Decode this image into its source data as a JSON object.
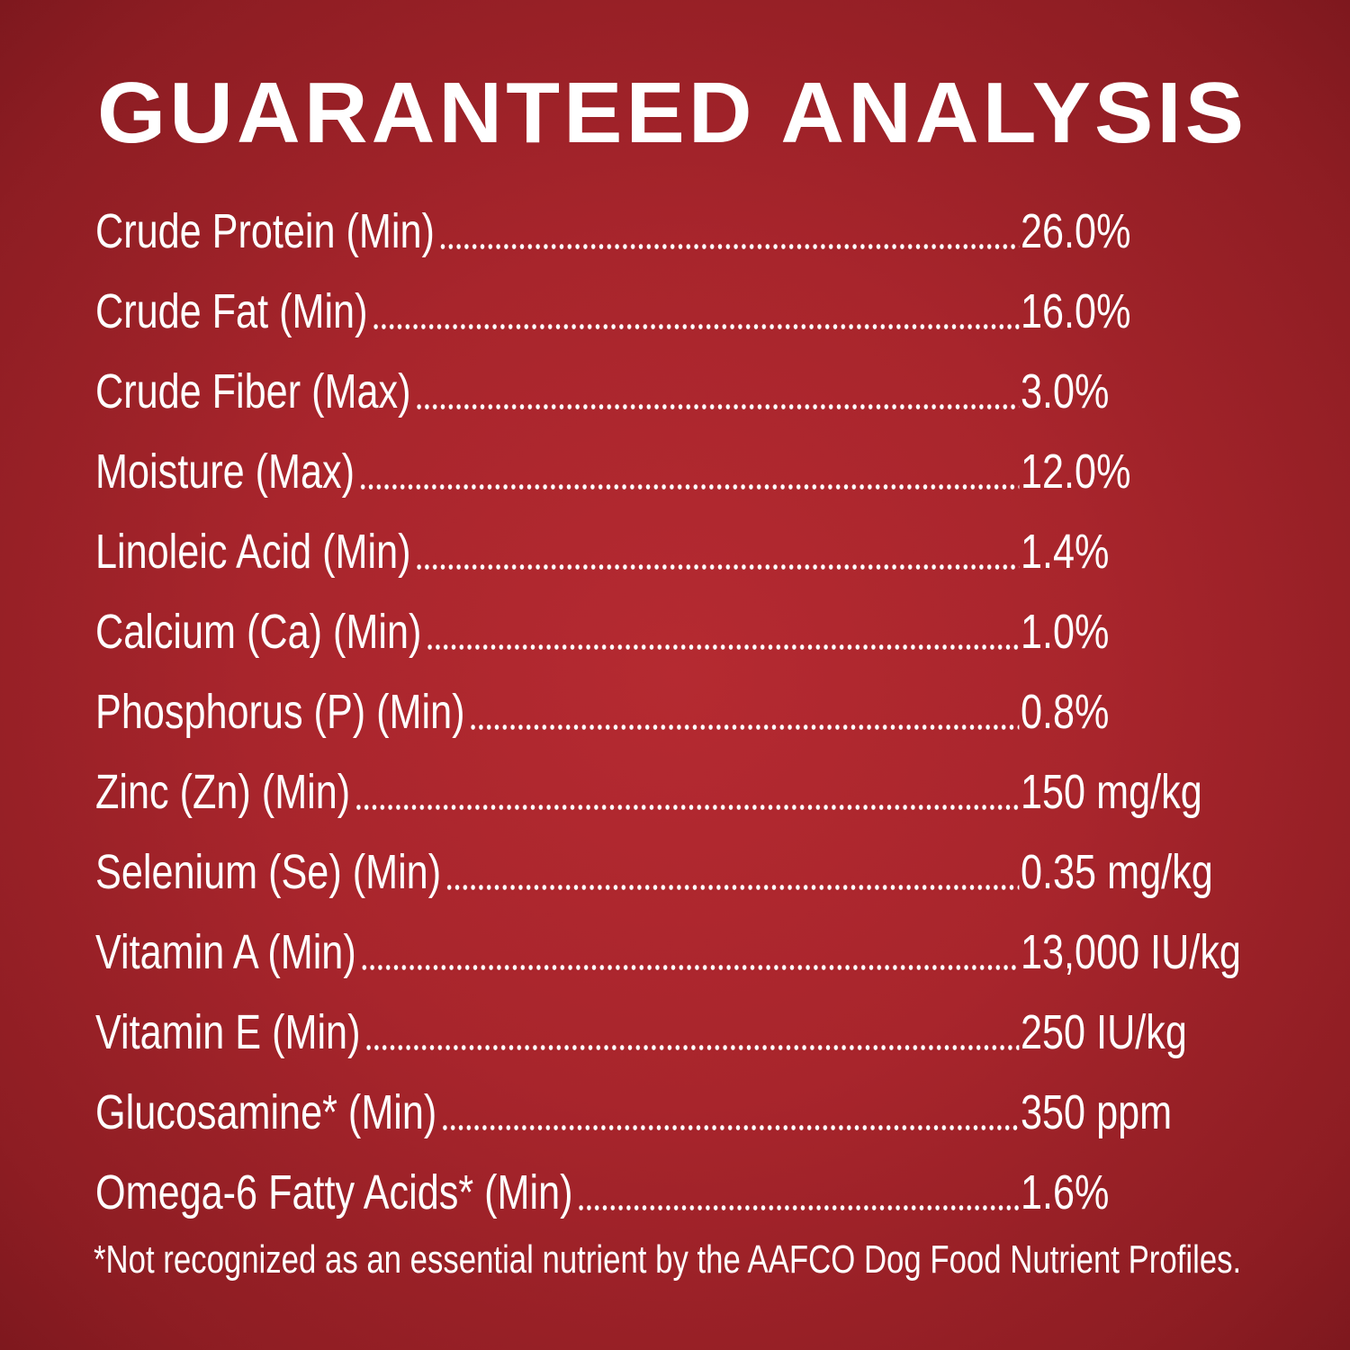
{
  "title": "GUARANTEED ANALYSIS",
  "rows": [
    {
      "label": "Crude Protein (Min)",
      "value": "26.0%"
    },
    {
      "label": "Crude Fat (Min)",
      "value": "16.0%"
    },
    {
      "label": "Crude Fiber (Max)",
      "value": "3.0%"
    },
    {
      "label": "Moisture (Max)",
      "value": "12.0%"
    },
    {
      "label": "Linoleic Acid (Min)",
      "value": "1.4%"
    },
    {
      "label": "Calcium (Ca) (Min)",
      "value": "1.0%"
    },
    {
      "label": "Phosphorus (P) (Min)",
      "value": "0.8%"
    },
    {
      "label": "Zinc (Zn) (Min)",
      "value": "150 mg/kg"
    },
    {
      "label": "Selenium (Se) (Min)",
      "value": "0.35 mg/kg"
    },
    {
      "label": "Vitamin A (Min)",
      "value": "13,000 IU/kg"
    },
    {
      "label": "Vitamin E (Min)",
      "value": "250 IU/kg"
    },
    {
      "label": "Glucosamine* (Min)",
      "value": "350 ppm"
    },
    {
      "label": "Omega-6 Fatty Acids* (Min)",
      "value": "1.6%"
    }
  ],
  "footnote": "*Not recognized as an essential nutrient by the AAFCO Dog Food Nutrient Profiles.",
  "colors": {
    "background": "#a8252c",
    "text": "#ffffff"
  }
}
